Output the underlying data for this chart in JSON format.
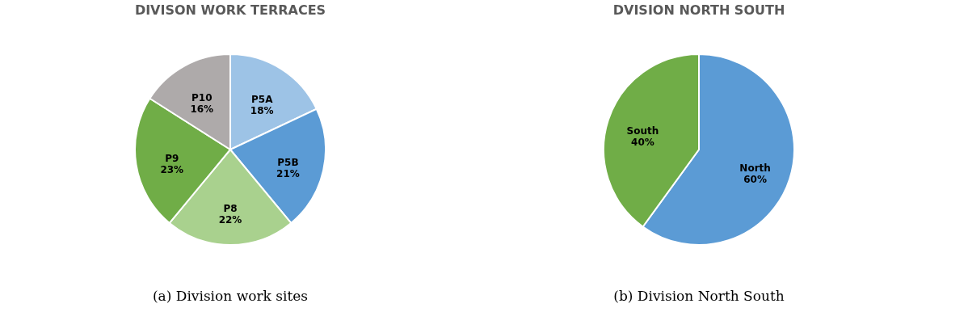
{
  "chart_data": [
    {
      "type": "pie",
      "title": "DIVISON WORK TERRACES",
      "categories": [
        "P5A",
        "P5B",
        "P8",
        "P9",
        "P10"
      ],
      "values": [
        18,
        21,
        22,
        23,
        16
      ],
      "value_labels": [
        "18%",
        "21%",
        "22%",
        "23%",
        "16%"
      ],
      "colors": [
        "#9dc3e6",
        "#5b9bd5",
        "#a9d18e",
        "#70ad47",
        "#aeaaaa"
      ],
      "legend": false,
      "annotations": [
        "(a) Division work sites"
      ]
    },
    {
      "type": "pie",
      "title": "DVISION NORTH SOUTH",
      "categories": [
        "North",
        "South"
      ],
      "values": [
        60,
        40
      ],
      "value_labels": [
        "60%",
        "40%"
      ],
      "colors": [
        "#5b9bd5",
        "#70ad47"
      ],
      "legend": false,
      "annotations": [
        "(b) Division North South"
      ]
    }
  ]
}
